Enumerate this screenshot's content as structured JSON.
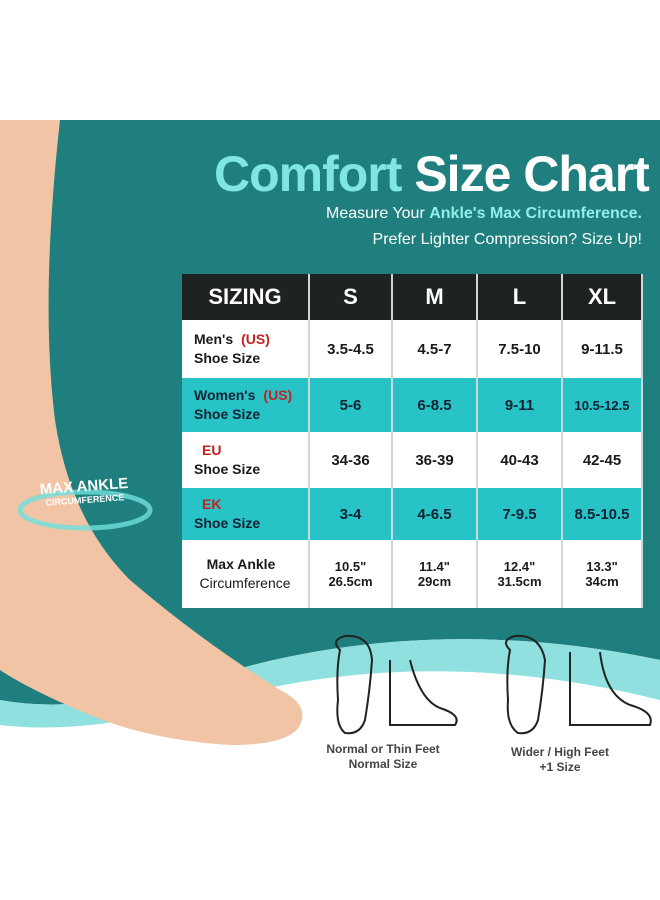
{
  "title": {
    "part1": "Comfort",
    "part2": "Size Chart"
  },
  "subtitle": {
    "line1_pre": "Measure Your ",
    "line1_bold": "Ankle's Max Circumference.",
    "line2": "Prefer Lighter Compression? Size Up!"
  },
  "ankle_label": {
    "line1": "MAX ANKLE",
    "line2": "CIRCUMFERENCE"
  },
  "table": {
    "headers": [
      "SIZING",
      "S",
      "M",
      "L",
      "XL"
    ],
    "rows": [
      {
        "label1": "Men's",
        "tag": "(US)",
        "label2": "Shoe Size",
        "values": [
          "3.5-4.5",
          "4.5-7",
          "7.5-10",
          "9-11.5"
        ]
      },
      {
        "label1": "Women's",
        "tag": "(US)",
        "label2": "Shoe Size",
        "values": [
          "5-6",
          "6-8.5",
          "9-11",
          "10.5-12.5"
        ]
      },
      {
        "label1": "",
        "tag": "EU",
        "label2": "Shoe Size",
        "values": [
          "34-36",
          "36-39",
          "40-43",
          "42-45"
        ]
      },
      {
        "label1": "",
        "tag": "EK",
        "label2": "Shoe Size",
        "values": [
          "3-4",
          "4-6.5",
          "7-9.5",
          "8.5-10.5"
        ]
      },
      {
        "label1": "Max Ankle",
        "tag": "",
        "label2": "Circumference",
        "values": [
          "10.5\"\n26.5cm",
          "11.4\"\n29cm",
          "12.4\"\n31.5cm",
          "13.3\"\n34cm"
        ]
      }
    ]
  },
  "captions": {
    "normal": {
      "line1": "Normal or Thin Feet",
      "line2": "Normal Size"
    },
    "wide": {
      "line1": "Wider / High Feet",
      "line2": "+1 Size"
    }
  },
  "colors": {
    "teal": "#1f7f7f",
    "cyan": "#27c3c6",
    "header": "#1f2222",
    "accent": "#7fe6e2"
  }
}
